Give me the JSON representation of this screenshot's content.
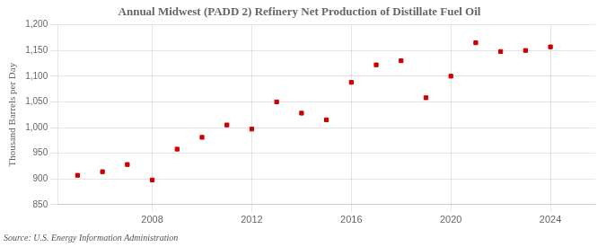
{
  "chart_data": {
    "type": "scatter",
    "title": "Annual Midwest (PADD 2) Refinery Net Production of Distillate Fuel Oil",
    "ylabel": "Thousand Barrels per Day",
    "source": "Source: U.S. Energy Information Administration",
    "x": [
      2005,
      2006,
      2007,
      2008,
      2009,
      2010,
      2011,
      2012,
      2013,
      2014,
      2015,
      2016,
      2017,
      2018,
      2019,
      2020,
      2021,
      2022,
      2023,
      2024
    ],
    "values": [
      907,
      914,
      928,
      898,
      958,
      981,
      1005,
      997,
      1050,
      1028,
      1015,
      1088,
      1122,
      1130,
      1058,
      1100,
      1165,
      1148,
      1150,
      1157
    ],
    "color": "#cc0000",
    "marker": "square",
    "xlim": [
      2004.2,
      2025.8
    ],
    "xticks": [
      2008,
      2012,
      2016,
      2020,
      2024
    ],
    "ylim": [
      850,
      1200
    ],
    "yticks": [
      850,
      900,
      950,
      {
        "value": 1000,
        "label": "1,000"
      },
      {
        "value": 1050,
        "label": "1,050"
      },
      {
        "value": 1100,
        "label": "1,100"
      },
      {
        "value": 1150,
        "label": "1,150"
      },
      {
        "value": 1200,
        "label": "1,200"
      }
    ],
    "grid": true
  }
}
